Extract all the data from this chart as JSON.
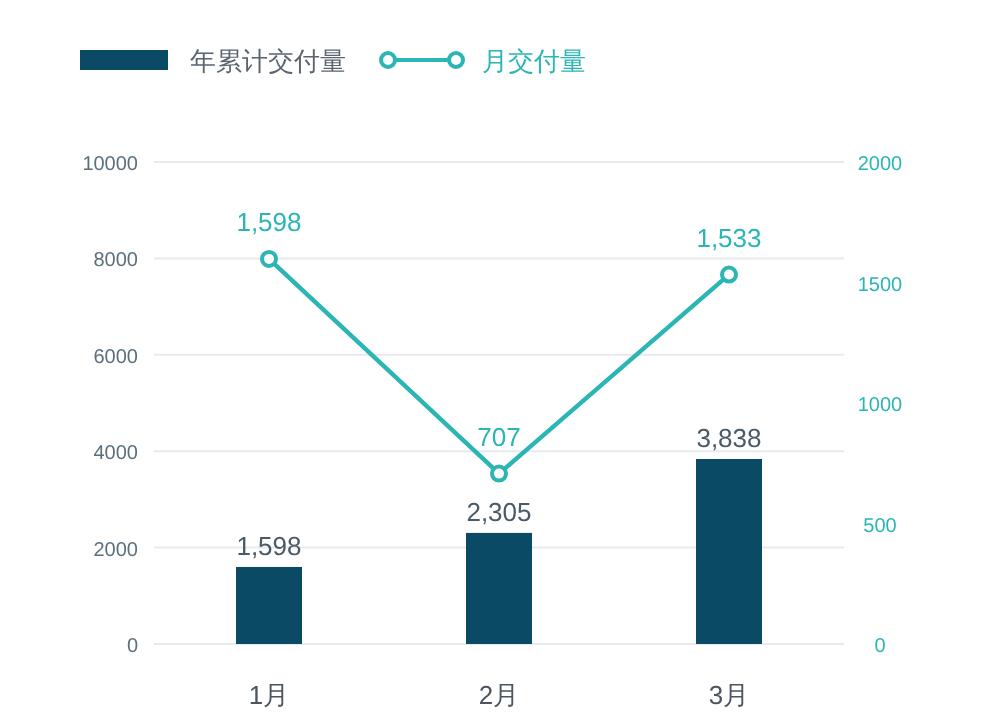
{
  "chart_data": {
    "type": "bar",
    "categories": [
      "1月",
      "2月",
      "3月"
    ],
    "series": [
      {
        "name": "年累计交付量",
        "color": "#0b4a64",
        "values": [
          1598,
          2305,
          3838
        ],
        "value_labels": [
          "1,598",
          "2,305",
          "3,838"
        ]
      },
      {
        "name": "月交付量",
        "type": "line",
        "axis": "y2",
        "color": "#2bb5b5",
        "marker": "circle",
        "values": [
          1598,
          707,
          1533
        ],
        "value_labels": [
          "1,598",
          "707",
          "1,533"
        ]
      }
    ],
    "ylim": [
      0,
      10000
    ],
    "yticks": [
      0,
      2000,
      4000,
      6000,
      8000,
      10000
    ],
    "y2lim": [
      0,
      2000
    ],
    "y2ticks": [
      0,
      500,
      1000,
      1500,
      2000
    ],
    "grid": "y",
    "legend": "top left"
  }
}
